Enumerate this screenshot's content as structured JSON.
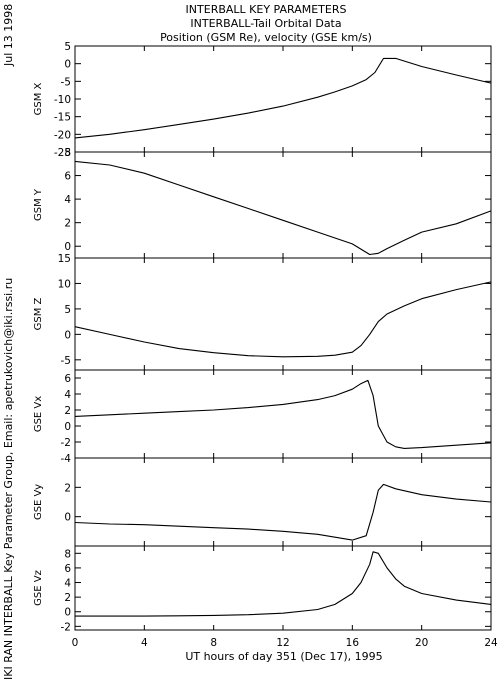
{
  "header": {
    "title_line1": "INTERBALL KEY PARAMETERS",
    "title_line2": "INTERBALL-Tail Orbital Data",
    "title_line3": "Position (GSM Re), velocity (GSE km/s)"
  },
  "side": {
    "date": "Jul 13 1998",
    "credit": "IKI RAN INTERBALL Key Parameter Group, Email: apetrukovich@iki.rssi.ru"
  },
  "chart_data": {
    "type": "line",
    "x_axis": {
      "label": "UT hours of day 351 (Dec 17), 1995",
      "range": [
        0,
        24
      ],
      "ticks": [
        0,
        4,
        8,
        12,
        16,
        20,
        24
      ],
      "tick_labels": [
        "0",
        "4",
        "8",
        "12",
        "16",
        "20",
        "24"
      ]
    },
    "panels": [
      {
        "ylabel": "GSM X",
        "ylim": [
          -25,
          5
        ],
        "yticks": [
          5,
          0,
          -5,
          -10,
          -15,
          -20,
          -25
        ],
        "ytick_labels": [
          "5",
          "0",
          "-5",
          "-10",
          "-15",
          "-20",
          "-25"
        ],
        "x": [
          0,
          2,
          4,
          6,
          8,
          10,
          12,
          14,
          15,
          16,
          16.8,
          17.3,
          17.8,
          18.5,
          20,
          22,
          24
        ],
        "values": [
          -21,
          -20,
          -18.7,
          -17.2,
          -15.7,
          -14,
          -12,
          -9.5,
          -8,
          -6.3,
          -4.5,
          -2.5,
          1.5,
          1.5,
          -0.8,
          -3.2,
          -5.5
        ]
      },
      {
        "ylabel": "GSM Y",
        "ylim": [
          -1,
          8
        ],
        "yticks": [
          8,
          6,
          4,
          2,
          0
        ],
        "ytick_labels": [
          "8",
          "6",
          "4",
          "2",
          "0"
        ],
        "x": [
          0,
          2,
          4,
          6,
          8,
          10,
          12,
          14,
          16,
          17,
          17.5,
          18,
          19,
          20,
          22,
          24
        ],
        "values": [
          7.2,
          6.9,
          6.2,
          5.2,
          4.2,
          3.2,
          2.2,
          1.2,
          0.2,
          -0.7,
          -0.6,
          -0.2,
          0.5,
          1.2,
          1.9,
          3.0
        ]
      },
      {
        "ylabel": "GSM Z",
        "ylim": [
          -7,
          15
        ],
        "yticks": [
          15,
          10,
          5,
          0,
          -5
        ],
        "ytick_labels": [
          "15",
          "10",
          "5",
          "0",
          "-5"
        ],
        "x": [
          0,
          2,
          4,
          6,
          8,
          10,
          12,
          14,
          15,
          16,
          16.5,
          17,
          17.5,
          18,
          19,
          20,
          22,
          24
        ],
        "values": [
          1.5,
          0,
          -1.5,
          -2.8,
          -3.6,
          -4.2,
          -4.4,
          -4.3,
          -4.1,
          -3.5,
          -2.2,
          0,
          2.5,
          4,
          5.6,
          7,
          8.8,
          10.3
        ]
      },
      {
        "ylabel": "GSE Vx",
        "ylim": [
          -4,
          7
        ],
        "yticks": [
          6,
          4,
          2,
          0,
          -2,
          -4
        ],
        "ytick_labels": [
          "6",
          "4",
          "2",
          "0",
          "-2",
          "-4"
        ],
        "x": [
          0,
          2,
          4,
          6,
          8,
          10,
          12,
          14,
          15,
          16,
          16.5,
          16.9,
          17.2,
          17.5,
          18,
          18.5,
          19,
          20,
          22,
          24
        ],
        "values": [
          1.2,
          1.4,
          1.6,
          1.8,
          2.0,
          2.3,
          2.7,
          3.3,
          3.8,
          4.6,
          5.3,
          5.7,
          3.8,
          0,
          -2,
          -2.6,
          -2.8,
          -2.7,
          -2.4,
          -2.1
        ]
      },
      {
        "ylabel": "GSE Vy",
        "ylim": [
          -2,
          4
        ],
        "yticks": [
          2,
          0
        ],
        "ytick_labels": [
          "2",
          "0"
        ],
        "x": [
          0,
          2,
          4,
          6,
          8,
          10,
          12,
          14,
          15,
          16,
          16.8,
          17.2,
          17.5,
          17.8,
          18.5,
          20,
          22,
          24
        ],
        "values": [
          -0.4,
          -0.5,
          -0.55,
          -0.65,
          -0.75,
          -0.85,
          -1.0,
          -1.2,
          -1.4,
          -1.6,
          -1.3,
          0.3,
          1.8,
          2.2,
          1.9,
          1.5,
          1.2,
          1.0
        ]
      },
      {
        "ylabel": "GSE Vz",
        "ylim": [
          -2.5,
          9
        ],
        "yticks": [
          8,
          6,
          4,
          2,
          0,
          -2
        ],
        "ytick_labels": [
          "8",
          "6",
          "4",
          "2",
          "0",
          "-2"
        ],
        "x": [
          0,
          2,
          4,
          6,
          8,
          10,
          12,
          14,
          15,
          16,
          16.5,
          17,
          17.2,
          17.5,
          18,
          18.5,
          19,
          20,
          22,
          24
        ],
        "values": [
          -0.6,
          -0.6,
          -0.6,
          -0.55,
          -0.5,
          -0.4,
          -0.2,
          0.3,
          1.0,
          2.5,
          4.0,
          6.5,
          8.2,
          8.0,
          6.0,
          4.5,
          3.5,
          2.5,
          1.6,
          1.0
        ]
      }
    ]
  }
}
